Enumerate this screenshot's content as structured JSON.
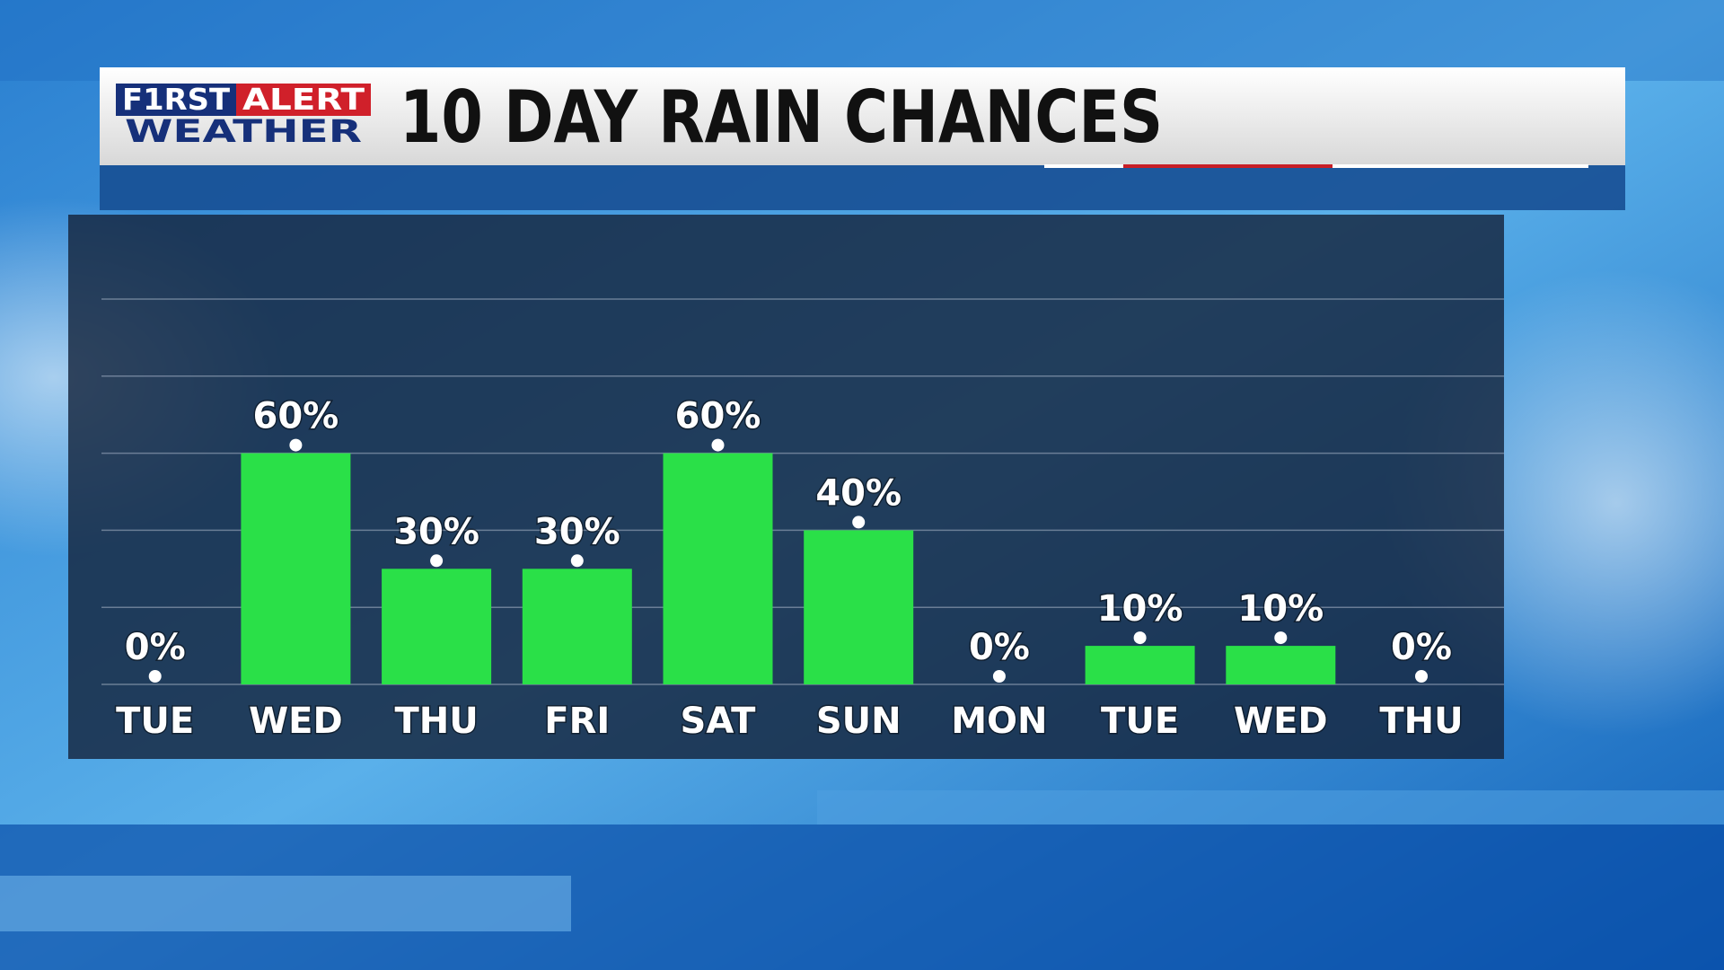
{
  "header": {
    "brand": {
      "first": "F1RST",
      "alert": "ALERT",
      "weather": "WEATHER"
    }
  },
  "chart_data": {
    "type": "bar",
    "title": "10 DAY RAIN CHANCES",
    "categories": [
      "TUE",
      "WED",
      "THU",
      "FRI",
      "SAT",
      "SUN",
      "MON",
      "TUE",
      "WED",
      "THU"
    ],
    "values": [
      0,
      60,
      30,
      30,
      60,
      40,
      0,
      10,
      10,
      0
    ],
    "value_labels": [
      "0%",
      "60%",
      "30%",
      "30%",
      "60%",
      "40%",
      "0%",
      "10%",
      "10%",
      "0%"
    ],
    "color": "#2ae048",
    "ylim": [
      0,
      100
    ],
    "yticks": [
      0,
      20,
      40,
      60,
      80,
      100
    ],
    "grid": true
  }
}
